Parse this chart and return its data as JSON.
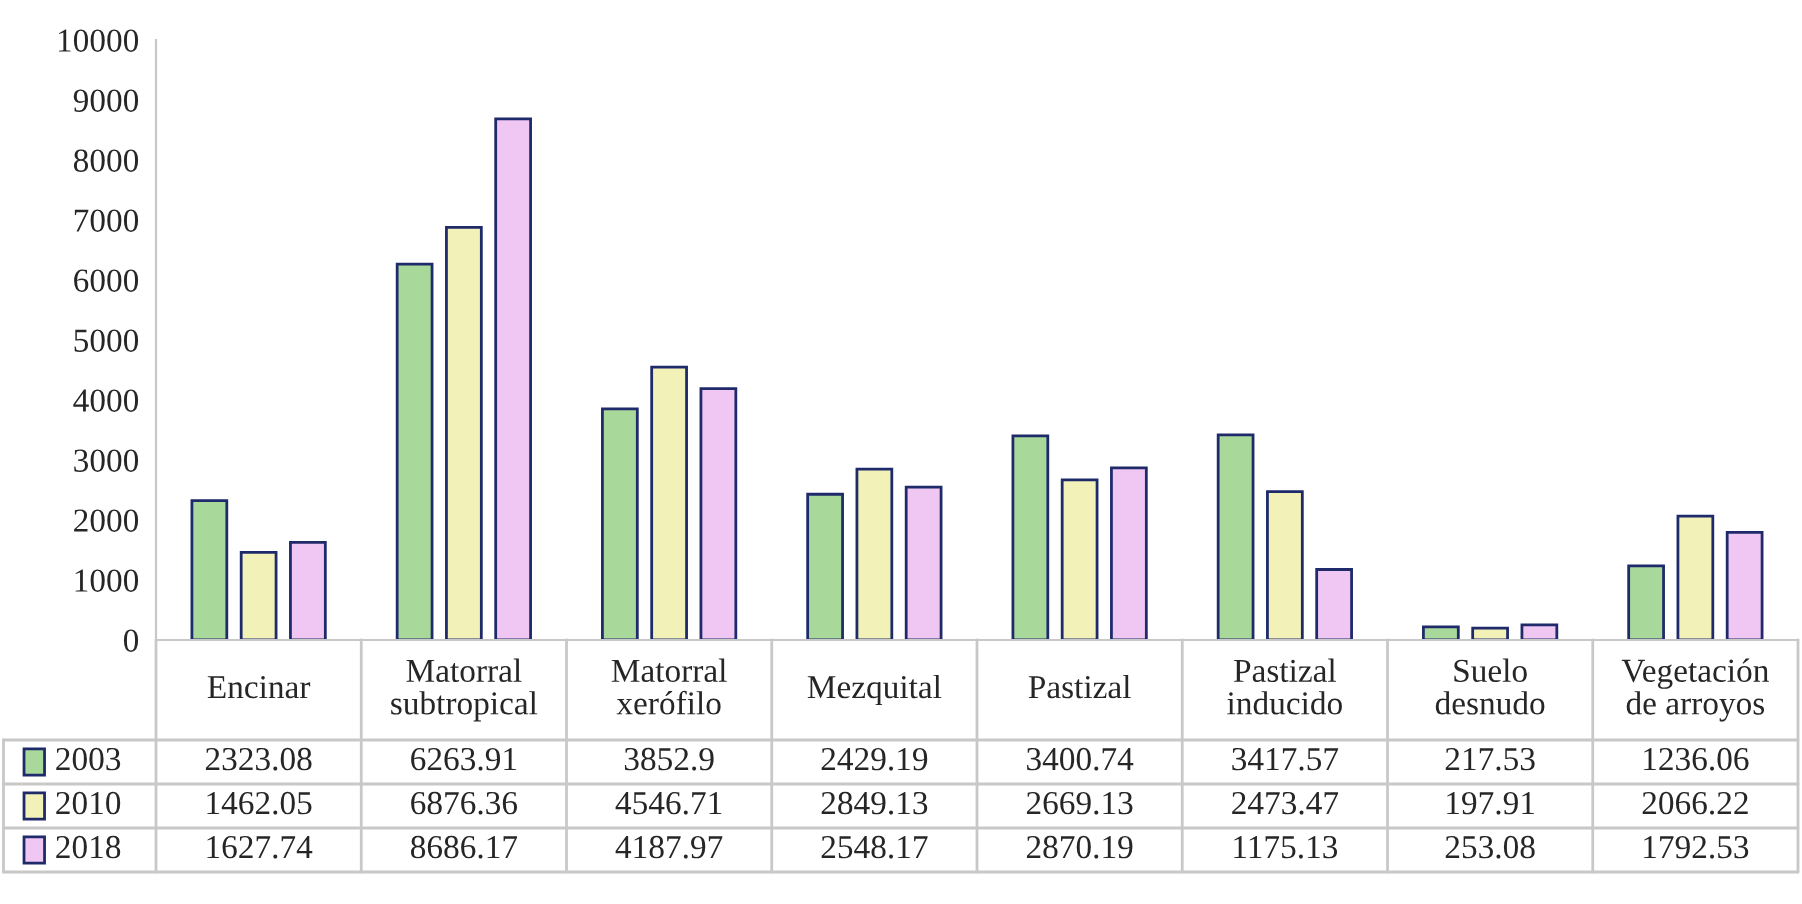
{
  "chart_data": {
    "type": "bar",
    "categories": [
      "Encinar",
      "Matorral\nsubtropical",
      "Matorral\nxerófilo",
      "Mezquital",
      "Pastizal",
      "Pastizal\ninducido",
      "Suelo\ndesnudo",
      "Vegetación\nde arroyos"
    ],
    "series": [
      {
        "name": "2003",
        "color": "#a9d99a",
        "values": [
          2323.08,
          6263.91,
          3852.9,
          2429.19,
          3400.74,
          3417.57,
          217.53,
          1236.06
        ]
      },
      {
        "name": "2010",
        "color": "#f2f2b8",
        "values": [
          1462.05,
          6876.36,
          4546.71,
          2849.13,
          2669.13,
          2473.47,
          197.91,
          2066.22
        ]
      },
      {
        "name": "2018",
        "color": "#f0c6f2",
        "values": [
          1627.74,
          8686.17,
          4187.97,
          2548.17,
          2870.19,
          1175.13,
          253.08,
          1792.53
        ]
      }
    ],
    "ylim": [
      0,
      10000
    ],
    "yticks": [
      0,
      1000,
      2000,
      3000,
      4000,
      5000,
      6000,
      7000,
      8000,
      9000,
      10000
    ],
    "data_labels": true,
    "grid": false,
    "legend": "bottom left"
  }
}
